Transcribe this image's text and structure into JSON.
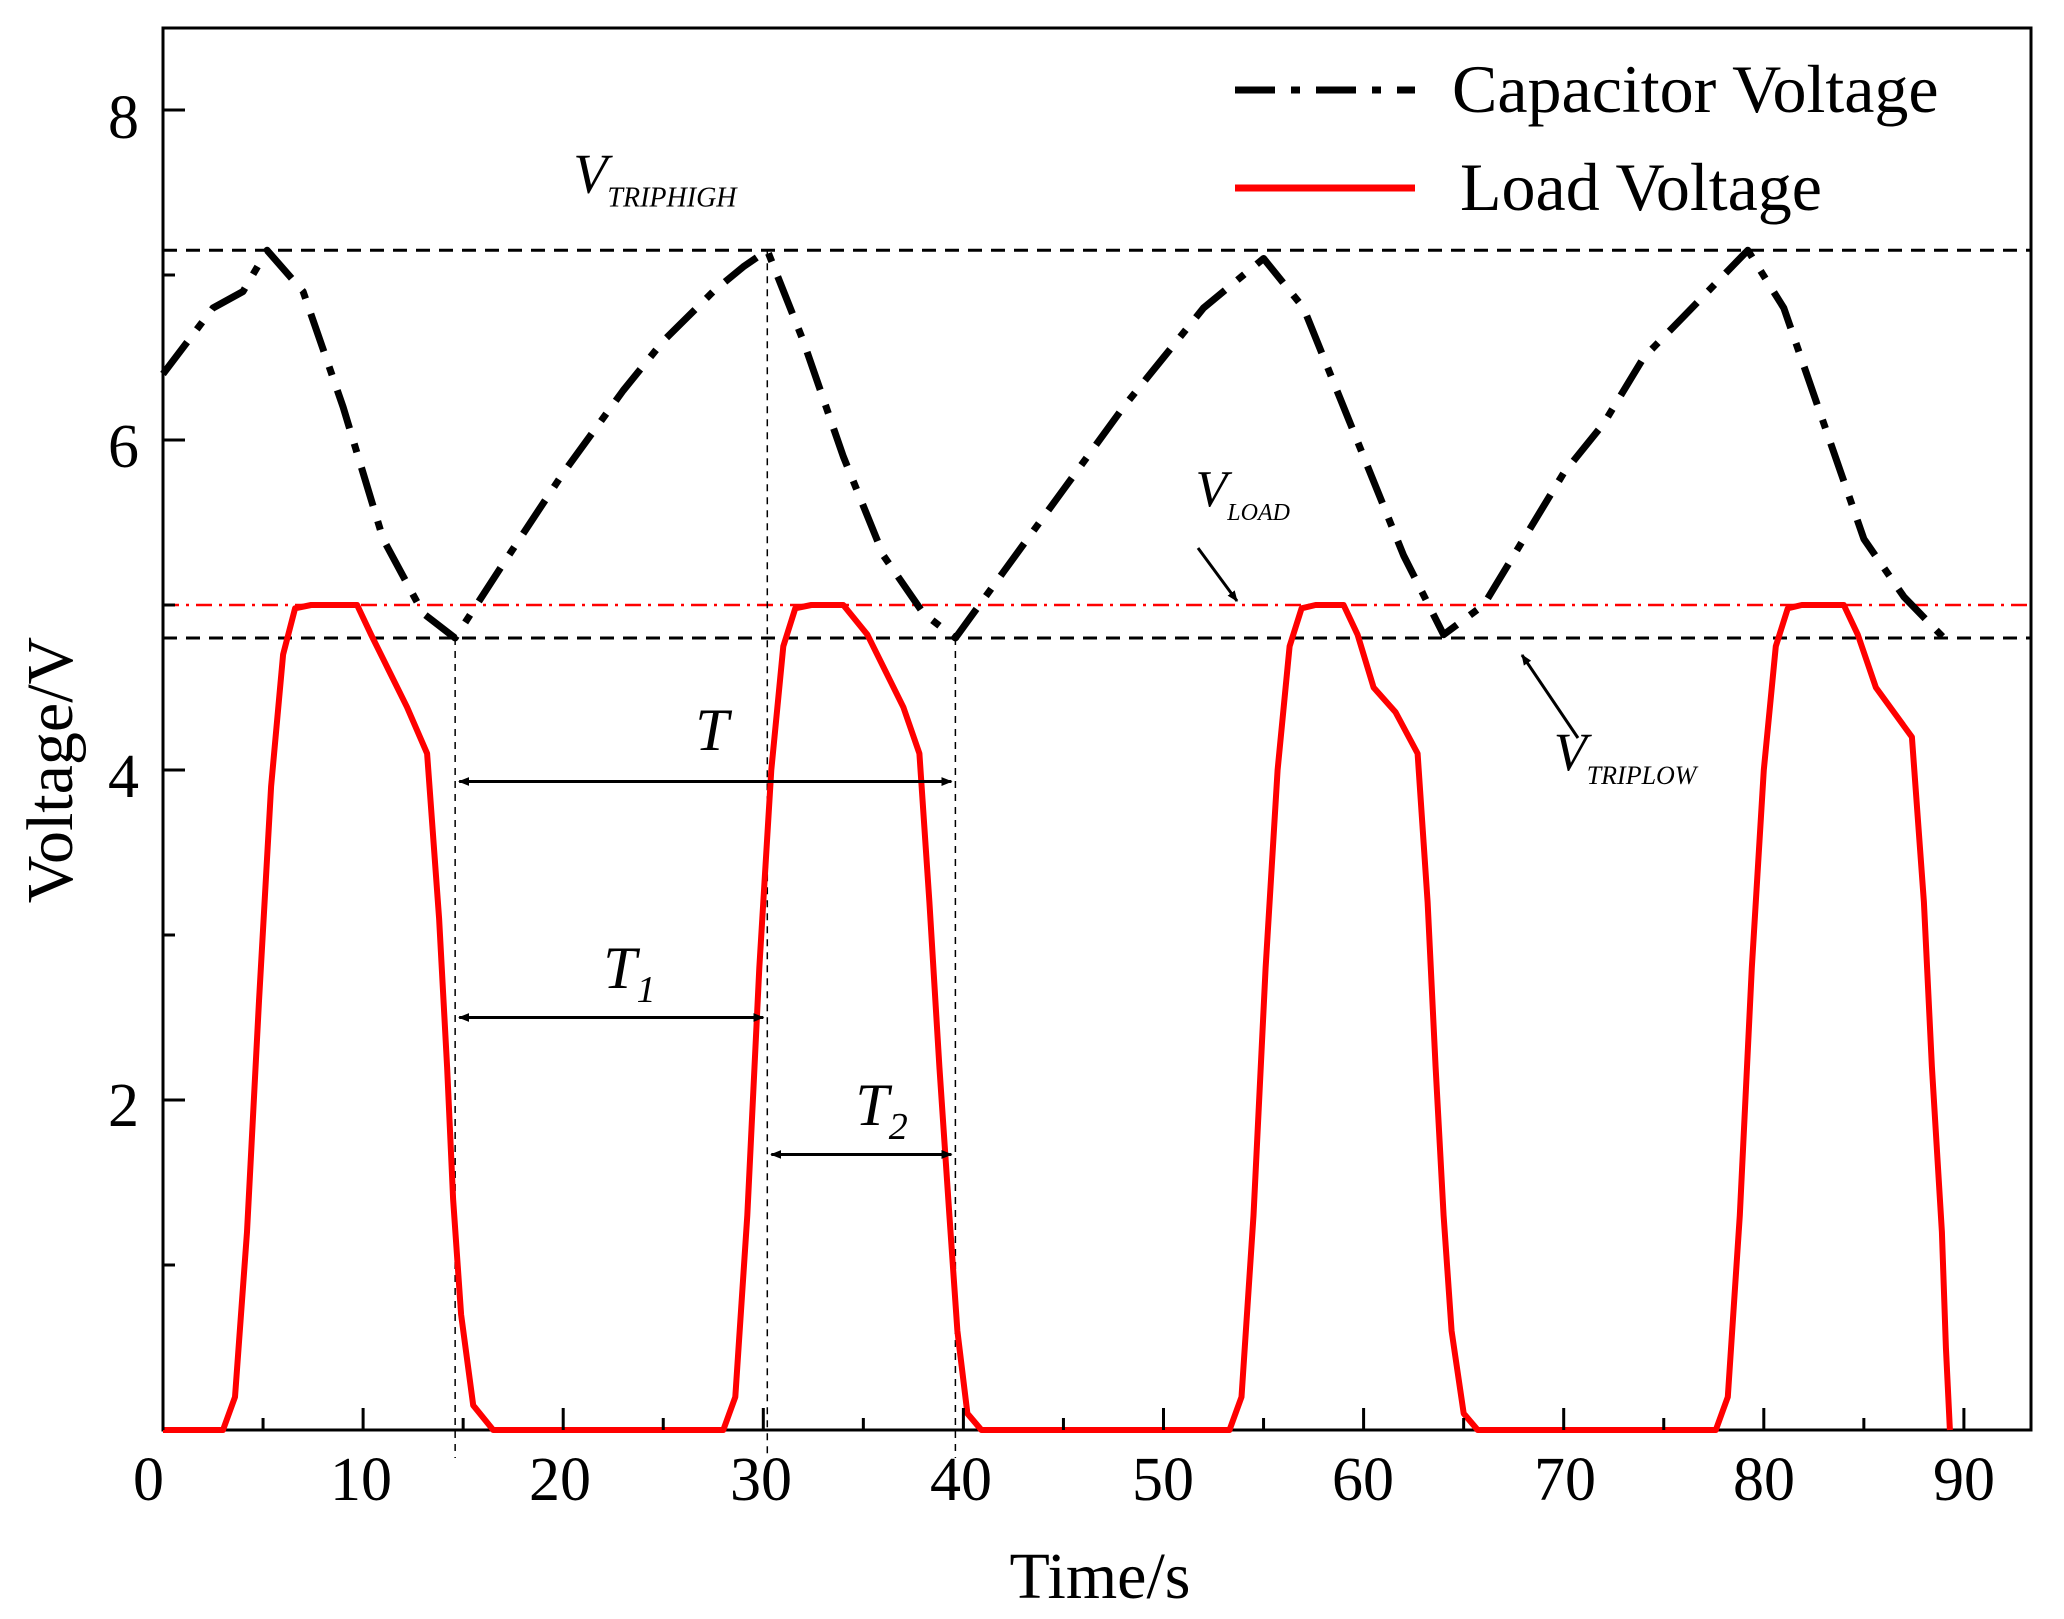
{
  "chart_data": {
    "type": "line",
    "xlabel": "Time/s",
    "ylabel": "Voltage/V",
    "xlim": [
      0,
      92
    ],
    "ylim": [
      0,
      8.5
    ],
    "x_ticks": [
      0,
      10,
      20,
      30,
      40,
      50,
      60,
      70,
      80,
      90
    ],
    "x_tick_labels": [
      "0",
      "10",
      "20",
      "30",
      "40",
      "50",
      "60",
      "70",
      "80",
      "90"
    ],
    "y_ticks": [
      2,
      4,
      6,
      8
    ],
    "y_tick_labels": [
      "2",
      "4",
      "6",
      "8"
    ],
    "grid": false,
    "legend_position": "top-right",
    "series": [
      {
        "name": "Capacitor Voltage",
        "style": "dash-dot",
        "color": "#000000",
        "x": [
          0,
          2.5,
          4,
          5.2,
          7,
          9,
          11,
          13,
          14.6,
          17,
          20,
          23,
          25,
          27.5,
          29,
          30.2,
          32,
          34,
          36,
          38,
          39.6,
          42,
          45,
          48,
          50,
          52,
          54,
          55,
          57,
          60,
          62,
          64,
          66,
          68,
          70,
          72,
          74,
          76,
          78,
          79.2,
          81,
          83,
          85,
          87,
          89
        ],
        "y": [
          6.4,
          6.8,
          6.9,
          7.15,
          6.9,
          6.2,
          5.4,
          4.95,
          4.8,
          5.25,
          5.8,
          6.3,
          6.6,
          6.9,
          7.05,
          7.15,
          6.6,
          5.9,
          5.3,
          4.95,
          4.8,
          5.2,
          5.7,
          6.2,
          6.5,
          6.8,
          7.0,
          7.1,
          6.8,
          5.9,
          5.3,
          4.82,
          5.0,
          5.4,
          5.8,
          6.1,
          6.5,
          6.75,
          7.0,
          7.15,
          6.8,
          6.1,
          5.4,
          5.05,
          4.8
        ]
      },
      {
        "name": "Load Voltage",
        "style": "solid",
        "color": "#ff0000",
        "x": [
          0,
          3,
          3.6,
          4.2,
          4.8,
          5.4,
          6,
          6.6,
          7.4,
          8.5,
          9.7,
          10.4,
          11.3,
          12.2,
          13.2,
          13.8,
          14.2,
          14.5,
          14.9,
          15.5,
          16.5,
          17.5,
          28,
          28.6,
          29.2,
          29.8,
          30.4,
          31,
          31.6,
          32.4,
          34,
          35.2,
          36.1,
          37,
          37.8,
          38.3,
          38.8,
          39.3,
          39.7,
          40.2,
          40.9,
          42,
          53.3,
          53.9,
          54.5,
          55.1,
          55.7,
          56.3,
          56.9,
          57.6,
          59,
          59.7,
          60.5,
          61.6,
          62.7,
          63.2,
          63.6,
          64,
          64.4,
          65,
          65.7,
          66.6,
          77.6,
          78.2,
          78.8,
          79.4,
          80,
          80.6,
          81.2,
          81.9,
          84,
          84.7,
          85.6,
          86.5,
          87.4,
          88,
          88.4,
          88.9,
          89.1,
          89.3
        ],
        "y": [
          0,
          0,
          0.2,
          1.2,
          2.6,
          3.9,
          4.7,
          4.98,
          5,
          5,
          5,
          4.82,
          4.6,
          4.38,
          4.1,
          3.1,
          2.2,
          1.4,
          0.7,
          0.15,
          0,
          0,
          0,
          0.2,
          1.3,
          2.8,
          4.0,
          4.75,
          4.98,
          5,
          5,
          4.82,
          4.6,
          4.38,
          4.1,
          3.2,
          2.2,
          1.3,
          0.6,
          0.1,
          0,
          0,
          0,
          0.2,
          1.3,
          2.8,
          4.0,
          4.75,
          4.98,
          5,
          5,
          4.82,
          4.5,
          4.35,
          4.1,
          3.2,
          2.2,
          1.3,
          0.6,
          0.1,
          0,
          0,
          0,
          0.2,
          1.3,
          2.8,
          4.0,
          4.75,
          4.98,
          5,
          5,
          4.82,
          4.5,
          4.35,
          4.2,
          3.2,
          2.2,
          1.2,
          0.5,
          0
        ]
      }
    ],
    "reference_lines": [
      {
        "name": "V_TRIPHIGH",
        "y": 7.15,
        "style": "dashed",
        "color": "#000000"
      },
      {
        "name": "V_TRIPLOW",
        "y": 4.8,
        "style": "dashed",
        "color": "#000000"
      },
      {
        "name": "V_LOAD",
        "y": 5.0,
        "style": "dash-dot",
        "color": "#ff0000"
      }
    ],
    "vertical_guides": [
      14.6,
      30.2,
      39.6
    ],
    "annotations": {
      "v_triphigh": {
        "main": "V",
        "sub": "TRIPHIGH",
        "x": 20.5,
        "y": 7.5
      },
      "v_load": {
        "main": "V",
        "sub": "LOAD",
        "x": 51.6,
        "y": 5.6
      },
      "v_triplow": {
        "main": "V",
        "sub": "TRIPLOW",
        "x": 69.5,
        "y": 4.0
      },
      "t": {
        "label": "T",
        "from": 14.6,
        "to": 39.6,
        "y": 3.93,
        "label_x": 26.6,
        "label_y": 4.12
      },
      "t1": {
        "main": "T",
        "sub": "1",
        "from": 14.6,
        "to": 30.2,
        "y": 2.5,
        "label_x": 22,
        "label_y": 2.68
      },
      "t2": {
        "main": "T",
        "sub": "2",
        "from": 30.2,
        "to": 39.6,
        "y": 1.67,
        "label_x": 34.6,
        "label_y": 1.85
      }
    }
  }
}
